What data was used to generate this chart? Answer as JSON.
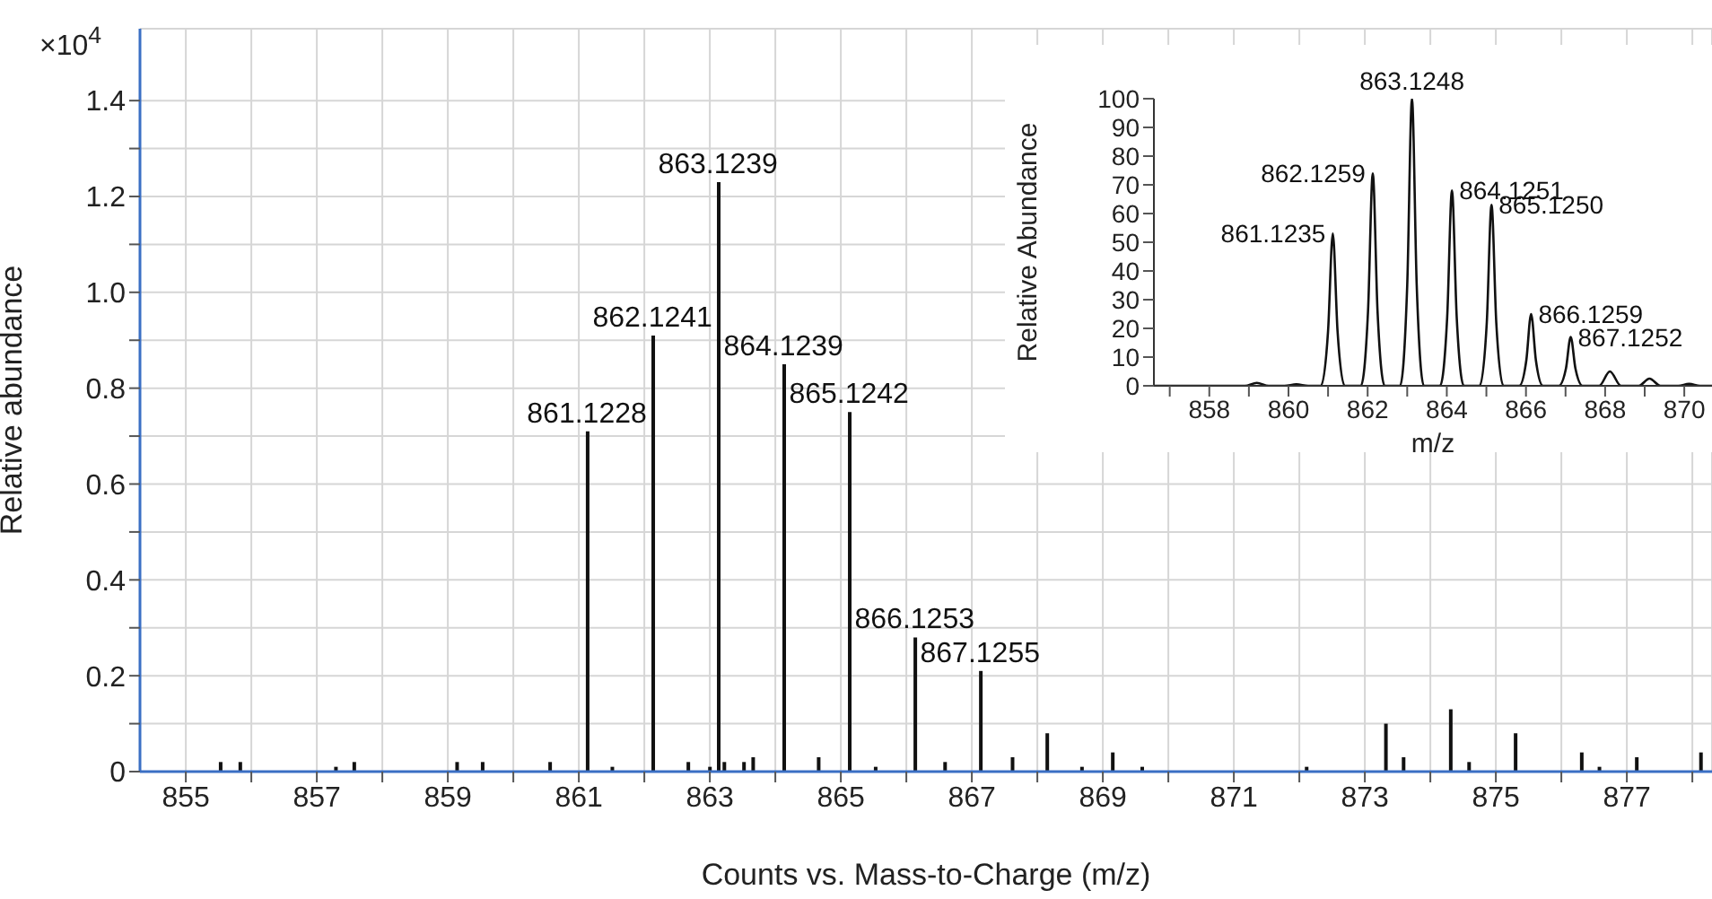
{
  "chart_data": [
    {
      "type": "bar",
      "xlabel": "Counts vs. Mass-to-Charge (m/z)",
      "ylabel": "Relative abundance",
      "color": "#111111",
      "grid": true,
      "x": [
        855.52,
        855.82,
        857.28,
        857.56,
        859.13,
        859.52,
        860.55,
        861.1228,
        861.5,
        862.1241,
        862.66,
        862.99,
        863.1239,
        863.21,
        863.51,
        863.65,
        864.1239,
        864.65,
        865.1242,
        865.52,
        866.1253,
        866.58,
        867.1255,
        867.61,
        868.14,
        868.67,
        869.14,
        869.59,
        872.1,
        873.31,
        873.58,
        874.3,
        874.58,
        875.29,
        876.3,
        876.57,
        877.14,
        878.12
      ],
      "values": [
        0.02,
        0.02,
        0.01,
        0.02,
        0.02,
        0.02,
        0.02,
        0.71,
        0.01,
        0.91,
        0.02,
        0.01,
        1.23,
        0.02,
        0.02,
        0.03,
        0.85,
        0.03,
        0.75,
        0.01,
        0.28,
        0.02,
        0.21,
        0.03,
        0.08,
        0.01,
        0.04,
        0.01,
        0.01,
        0.1,
        0.03,
        0.13,
        0.02,
        0.08,
        0.04,
        0.01,
        0.03,
        0.04
      ],
      "xlim": [
        854.3,
        878.3
      ],
      "ylim": [
        0,
        1.55
      ],
      "xticks": [
        855,
        {
          "value": 856,
          "label": null
        },
        857,
        {
          "value": 858,
          "label": null
        },
        859,
        {
          "value": 860,
          "label": null
        },
        861,
        {
          "value": 862,
          "label": null
        },
        863,
        {
          "value": 864,
          "label": null
        },
        865,
        {
          "value": 866,
          "label": null
        },
        867,
        {
          "value": 868,
          "label": null
        },
        869,
        {
          "value": 870,
          "label": null
        },
        871,
        {
          "value": 872,
          "label": null
        },
        873,
        {
          "value": 874,
          "label": null
        },
        875,
        {
          "value": 876,
          "label": null
        },
        877,
        {
          "value": 878,
          "label": null
        }
      ],
      "yticks": [
        0,
        {
          "value": 0.1,
          "label": null
        },
        0.2,
        {
          "value": 0.3,
          "label": null
        },
        0.4,
        {
          "value": 0.5,
          "label": null
        },
        0.6,
        {
          "value": 0.7,
          "label": null
        },
        0.8,
        {
          "value": 0.9,
          "label": null
        },
        {
          "value": 1,
          "label": "1.0"
        },
        {
          "value": 1.1,
          "label": null
        },
        1.2,
        {
          "value": 1.3,
          "label": null
        },
        1.4
      ],
      "annotations": [
        "×10$^{4}$",
        {
          "text": "861.1228",
          "x": 861.1228,
          "y": 0.71
        },
        {
          "text": "862.1241",
          "x": 862.1241,
          "y": 0.91
        },
        {
          "text": "863.1239",
          "x": 863.1239,
          "y": 1.23
        },
        {
          "text": "864.1239",
          "x": 864.1239,
          "y": 0.85
        },
        {
          "text": "865.1242",
          "x": 865.1242,
          "y": 0.75
        },
        {
          "text": "866.1253",
          "x": 866.1253,
          "y": 0.28
        },
        {
          "text": "867.1255",
          "x": 867.1255,
          "y": 0.21
        }
      ]
    },
    {
      "type": "line",
      "xlabel": "m/z",
      "ylabel": "Relative Abundance",
      "color": "#111111",
      "marker": "none",
      "x": [
        856.6,
        858.9,
        859.2,
        859.5,
        859.9,
        860.2,
        860.5,
        860.82,
        861.0,
        861.12,
        861.24,
        861.42,
        861.83,
        862.01,
        862.13,
        862.25,
        862.43,
        862.82,
        863.0,
        863.12,
        863.24,
        863.42,
        863.83,
        864.01,
        864.13,
        864.25,
        864.43,
        864.83,
        865.01,
        865.13,
        865.25,
        865.43,
        865.83,
        866.01,
        866.13,
        866.25,
        866.43,
        866.83,
        867.01,
        867.13,
        867.25,
        867.43,
        867.85,
        868.12,
        868.4,
        868.85,
        869.12,
        869.4,
        869.85,
        870.12,
        870.4,
        870.7
      ],
      "values": [
        0,
        0,
        1,
        0,
        0,
        0.5,
        0,
        0,
        19,
        53,
        19,
        0,
        0,
        26,
        74,
        26,
        0,
        0,
        35,
        100,
        35,
        0,
        0,
        24,
        68,
        24,
        0,
        0,
        22,
        63,
        22,
        0,
        0,
        9,
        25,
        9,
        0,
        0,
        6,
        17,
        6,
        0,
        0,
        5,
        0,
        0,
        2.5,
        0,
        0,
        0.7,
        0,
        0
      ],
      "xlim": [
        856.6,
        870.7
      ],
      "ylim": [
        0,
        100
      ],
      "xticks": [
        {
          "value": 857,
          "label": null
        },
        858,
        {
          "value": 859,
          "label": null
        },
        860,
        {
          "value": 861,
          "label": null
        },
        862,
        {
          "value": 863,
          "label": null
        },
        864,
        {
          "value": 865,
          "label": null
        },
        866,
        {
          "value": 867,
          "label": null
        },
        868,
        {
          "value": 869,
          "label": null
        },
        870
      ],
      "yticks": [
        0,
        10,
        20,
        30,
        40,
        50,
        60,
        70,
        80,
        90,
        100
      ],
      "annotations": [
        {
          "text": "861.1235",
          "x": 861.12,
          "y": 53
        },
        {
          "text": "862.1259",
          "x": 862.13,
          "y": 74
        },
        {
          "text": "863.1248",
          "x": 863.12,
          "y": 100
        },
        {
          "text": "864.1251",
          "x": 864.13,
          "y": 68
        },
        {
          "text": "865.1250",
          "x": 865.13,
          "y": 63
        },
        {
          "text": "866.1259",
          "x": 866.13,
          "y": 25
        },
        {
          "text": "867.1252",
          "x": 867.13,
          "y": 17
        }
      ]
    }
  ]
}
